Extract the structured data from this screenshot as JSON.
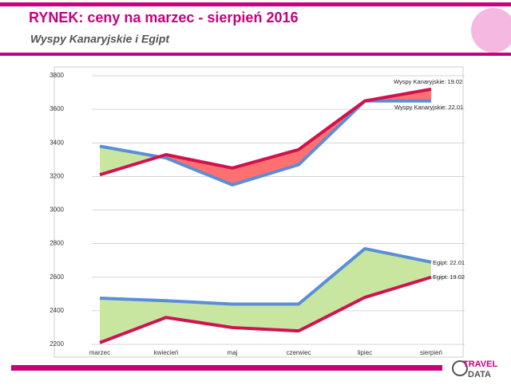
{
  "header": {
    "title": "RYNEK: ceny na marzec - sierpień 2016",
    "subtitle": "Wyspy Kanaryjskie  i Egipt"
  },
  "logo": {
    "line1": "TRAVEL",
    "line2": "DATA"
  },
  "chart_data": {
    "type": "line",
    "categories": [
      "marzec",
      "kwiecień",
      "maj",
      "czerwiec",
      "lipiec",
      "sierpień"
    ],
    "series": [
      {
        "name": "Wyspy Kanaryjskie: 22.01",
        "color": "#5b8ed6",
        "values": [
          3380,
          3310,
          3150,
          3270,
          3650,
          3650
        ]
      },
      {
        "name": "Wyspy Kanaryjskie: 19.02",
        "color": "#d0124e",
        "values": [
          3210,
          3330,
          3250,
          3360,
          3650,
          3720
        ]
      },
      {
        "name": "Egipt: 22.01",
        "color": "#5b8ed6",
        "values": [
          2475,
          2460,
          2440,
          2440,
          2770,
          2690
        ]
      },
      {
        "name": "Egipt: 19.02",
        "color": "#d0124e",
        "values": [
          2210,
          2360,
          2300,
          2280,
          2480,
          2600
        ]
      }
    ],
    "fill_colors": [
      "#c8e6a0",
      "#ff7070"
    ],
    "ylim": [
      2200,
      3800
    ],
    "yticks": [
      2200,
      2400,
      2600,
      2800,
      3000,
      3200,
      3400,
      3600,
      3800
    ],
    "grid": true
  }
}
